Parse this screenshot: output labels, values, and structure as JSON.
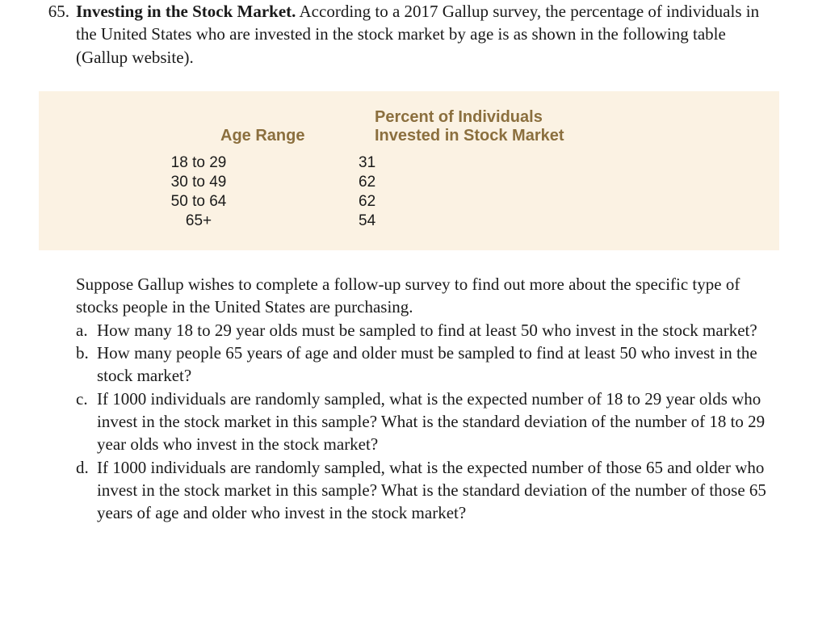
{
  "problem": {
    "number": "65.",
    "title": "Investing in the Stock Market.",
    "intro_rest": "  According to a 2017 Gallup survey, the percentage of individuals in the United States who are invested in the stock market by age is as shown in the following table (Gallup website)."
  },
  "table": {
    "type": "table",
    "background_color": "#fbf2e3",
    "header_color": "#8b6f3e",
    "header_font_family": "sans-serif",
    "header_fontsize": 20,
    "cell_fontsize": 19,
    "columns": [
      "Age Range",
      "Percent of Individuals Invested in Stock Market"
    ],
    "header_col2_line1": "Percent of Individuals",
    "header_col2_line2": "Invested in Stock Market",
    "rows": [
      {
        "age": "18 to 29",
        "pct": "31"
      },
      {
        "age": "30 to 49",
        "pct": "62"
      },
      {
        "age": "50 to 64",
        "pct": "62"
      },
      {
        "age": "65+",
        "pct": "54"
      }
    ]
  },
  "followup_intro": "Suppose Gallup wishes to complete a follow-up survey to find out more about the specific type of stocks people in the United States are purchasing.",
  "parts": {
    "a": {
      "letter": "a.",
      "text": "How many 18 to 29 year olds must be sampled to find at least 50 who invest in the stock market?"
    },
    "b": {
      "letter": "b.",
      "text": "How many people 65 years of age and older must be sampled to find at least 50 who invest in the stock market?"
    },
    "c": {
      "letter": "c.",
      "text": "If 1000 individuals are randomly sampled, what is the expected number of 18 to 29 year olds who invest in the stock market in this sample? What is the standard deviation of the number of 18 to 29 year olds who invest in the stock market?"
    },
    "d": {
      "letter": "d.",
      "text": "If 1000 individuals are randomly sampled, what is the expected number of those 65 and older who invest in the stock market in this sample? What is the standard deviation of the number of those 65 years of age and older who invest in the stock market?"
    }
  }
}
